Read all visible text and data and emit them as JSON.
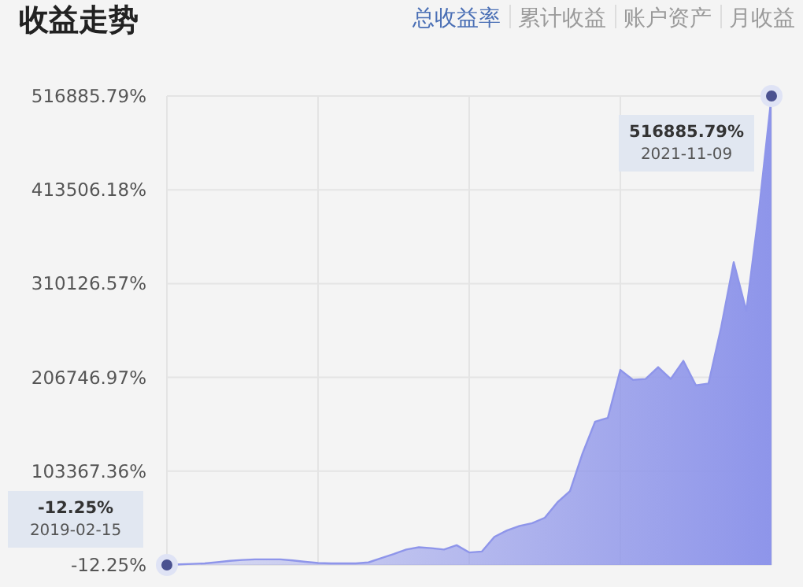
{
  "chart_data": {
    "type": "area",
    "title": "收益走势",
    "annotations": [
      "总收益率",
      "累计收益",
      "账户资产",
      "月收益",
      "516885.79%\n2021-11-09",
      "-12.25%\n2019-02-15"
    ],
    "categories": [
      null,
      null,
      null,
      null,
      null,
      null,
      null,
      null,
      null,
      null,
      null,
      null,
      null,
      null,
      null,
      null,
      null,
      null,
      null,
      null,
      null,
      null,
      null,
      null,
      null,
      null,
      null,
      null,
      null,
      null,
      null,
      null,
      null,
      null,
      null,
      null,
      null,
      null,
      null,
      null,
      null,
      null,
      null,
      null,
      null,
      null,
      null,
      null,
      null
    ],
    "series": [
      {
        "color": "#8e95ea",
        "values": [
          -12.25,
          700,
          1200,
          1700,
          3000,
          4500,
          5500,
          6200,
          6200,
          6200,
          5000,
          3500,
          2200,
          1700,
          1700,
          1700,
          2800,
          7500,
          12000,
          17000,
          19500,
          18500,
          17000,
          21800,
          13800,
          14800,
          31000,
          38000,
          43000,
          46000,
          52000,
          69000,
          81500,
          123000,
          158000,
          162000,
          215000,
          204000,
          205000,
          218000,
          205000,
          225000,
          198000,
          200000,
          262000,
          333700,
          280000,
          390000,
          516885.79
        ]
      }
    ],
    "ylim": [
      -12.25,
      516885.79
    ],
    "yticks": [
      {
        "value": -12.25,
        "label": "-12.25%"
      },
      {
        "value": 103367.36,
        "label": "103367.36%"
      },
      {
        "value": 206746.97,
        "label": "206746.97%"
      },
      {
        "value": 310126.57,
        "label": "310126.57%"
      },
      {
        "value": 413506.18,
        "label": "413506.18%"
      },
      {
        "value": 516885.79,
        "label": "516885.79%"
      }
    ],
    "grid": true
  }
}
